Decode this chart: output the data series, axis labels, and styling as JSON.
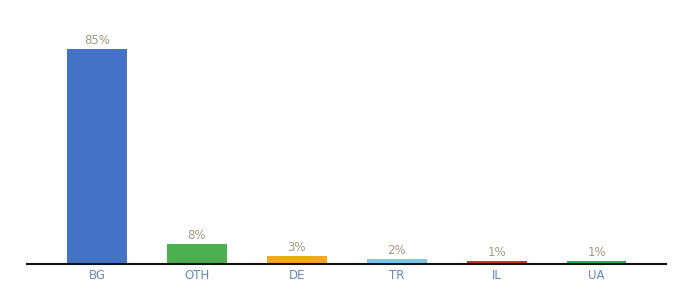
{
  "categories": [
    "BG",
    "OTH",
    "DE",
    "TR",
    "IL",
    "UA"
  ],
  "values": [
    85,
    8,
    3,
    2,
    1,
    1
  ],
  "bar_colors": [
    "#4472c4",
    "#4caf50",
    "#f5a623",
    "#7ec8e3",
    "#c0392b",
    "#27ae60"
  ],
  "bg_color": "#ffffff",
  "ylim": [
    0,
    95
  ],
  "bar_width": 0.6,
  "label_fontsize": 8.5,
  "xlabel_fontsize": 8.5,
  "label_color": "#a89880",
  "xlabel_color": "#6688bb"
}
